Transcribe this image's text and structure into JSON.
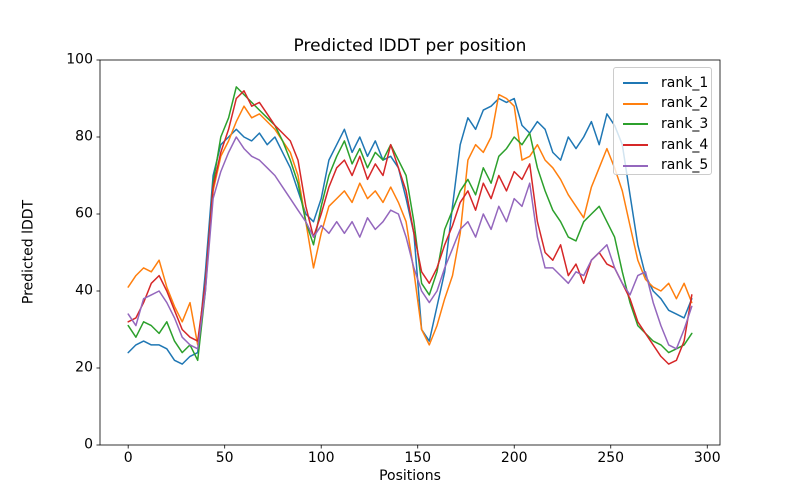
{
  "chart_data": {
    "type": "line",
    "title": "Predicted lDDT per position",
    "xlabel": "Positions",
    "ylabel": "Predicted lDDT",
    "xlim": [
      -14.6,
      306.6
    ],
    "ylim": [
      0,
      100
    ],
    "xticks": [
      0,
      50,
      100,
      150,
      200,
      250,
      300
    ],
    "yticks": [
      0,
      20,
      40,
      60,
      80,
      100
    ],
    "grid": false,
    "legend_position": "upper right",
    "x": [
      0,
      4,
      8,
      12,
      16,
      20,
      24,
      28,
      32,
      36,
      40,
      44,
      48,
      52,
      56,
      60,
      64,
      68,
      72,
      76,
      80,
      84,
      88,
      92,
      96,
      100,
      104,
      108,
      112,
      116,
      120,
      124,
      128,
      132,
      136,
      140,
      144,
      148,
      152,
      156,
      160,
      164,
      168,
      172,
      176,
      180,
      184,
      188,
      192,
      196,
      200,
      204,
      208,
      212,
      216,
      220,
      224,
      228,
      232,
      236,
      240,
      244,
      248,
      252,
      256,
      260,
      264,
      268,
      272,
      276,
      280,
      284,
      288,
      292
    ],
    "series": [
      {
        "name": "rank_1",
        "color": "#1f77b4",
        "values": [
          24,
          26,
          27,
          26,
          26,
          25,
          22,
          21,
          23,
          24,
          45,
          70,
          78,
          80,
          82,
          80,
          79,
          81,
          78,
          80,
          76,
          72,
          66,
          60,
          58,
          64,
          74,
          78,
          82,
          76,
          80,
          75,
          79,
          74,
          75,
          72,
          64,
          55,
          30,
          27,
          36,
          45,
          62,
          78,
          85,
          82,
          87,
          88,
          90,
          89,
          90,
          83,
          81,
          84,
          82,
          76,
          74,
          80,
          77,
          80,
          84,
          78,
          86,
          83,
          78,
          65,
          52,
          44,
          40,
          38,
          35,
          34,
          33,
          38
        ]
      },
      {
        "name": "rank_2",
        "color": "#ff7f0e",
        "values": [
          41,
          44,
          46,
          45,
          48,
          41,
          36,
          32,
          37,
          26,
          42,
          66,
          75,
          79,
          84,
          88,
          85,
          86,
          84,
          82,
          79,
          76,
          70,
          58,
          46,
          55,
          62,
          64,
          66,
          63,
          68,
          64,
          66,
          63,
          67,
          63,
          58,
          45,
          30,
          26,
          31,
          38,
          44,
          55,
          74,
          78,
          76,
          80,
          91,
          90,
          88,
          74,
          75,
          78,
          74,
          72,
          69,
          65,
          62,
          59,
          67,
          72,
          77,
          72,
          66,
          57,
          48,
          43,
          41,
          40,
          42,
          38,
          42,
          37
        ]
      },
      {
        "name": "rank_3",
        "color": "#2ca02c",
        "values": [
          31,
          28,
          32,
          31,
          29,
          32,
          27,
          24,
          26,
          22,
          40,
          68,
          80,
          85,
          93,
          91,
          89,
          87,
          85,
          83,
          79,
          74,
          68,
          58,
          52,
          62,
          70,
          75,
          79,
          73,
          77,
          72,
          76,
          74,
          78,
          74,
          70,
          58,
          42,
          39,
          45,
          56,
          61,
          66,
          69,
          65,
          72,
          68,
          75,
          77,
          80,
          78,
          81,
          72,
          66,
          61,
          58,
          54,
          53,
          58,
          60,
          62,
          58,
          54,
          45,
          37,
          31,
          29,
          27,
          26,
          24,
          25,
          26,
          29
        ]
      },
      {
        "name": "rank_4",
        "color": "#d62728",
        "values": [
          32,
          33,
          37,
          42,
          44,
          40,
          35,
          30,
          28,
          27,
          42,
          67,
          76,
          82,
          90,
          92,
          88,
          89,
          86,
          83,
          81,
          79,
          74,
          62,
          54,
          60,
          67,
          72,
          74,
          70,
          75,
          69,
          73,
          70,
          78,
          72,
          66,
          55,
          45,
          42,
          46,
          52,
          57,
          63,
          66,
          61,
          68,
          64,
          70,
          66,
          71,
          69,
          73,
          58,
          50,
          48,
          52,
          44,
          47,
          42,
          48,
          50,
          47,
          46,
          42,
          38,
          32,
          29,
          26,
          23,
          21,
          22,
          27,
          39
        ]
      },
      {
        "name": "rank_5",
        "color": "#9467bd",
        "values": [
          34,
          31,
          38,
          39,
          40,
          37,
          33,
          28,
          26,
          25,
          40,
          64,
          71,
          76,
          80,
          77,
          75,
          74,
          72,
          70,
          67,
          64,
          61,
          58,
          54,
          57,
          55,
          58,
          55,
          58,
          54,
          59,
          56,
          58,
          61,
          60,
          54,
          46,
          40,
          37,
          40,
          46,
          51,
          56,
          58,
          54,
          60,
          56,
          62,
          58,
          64,
          62,
          68,
          54,
          46,
          46,
          44,
          42,
          45,
          44,
          48,
          50,
          52,
          46,
          42,
          39,
          44,
          45,
          37,
          31,
          26,
          25,
          30,
          36
        ]
      }
    ]
  }
}
